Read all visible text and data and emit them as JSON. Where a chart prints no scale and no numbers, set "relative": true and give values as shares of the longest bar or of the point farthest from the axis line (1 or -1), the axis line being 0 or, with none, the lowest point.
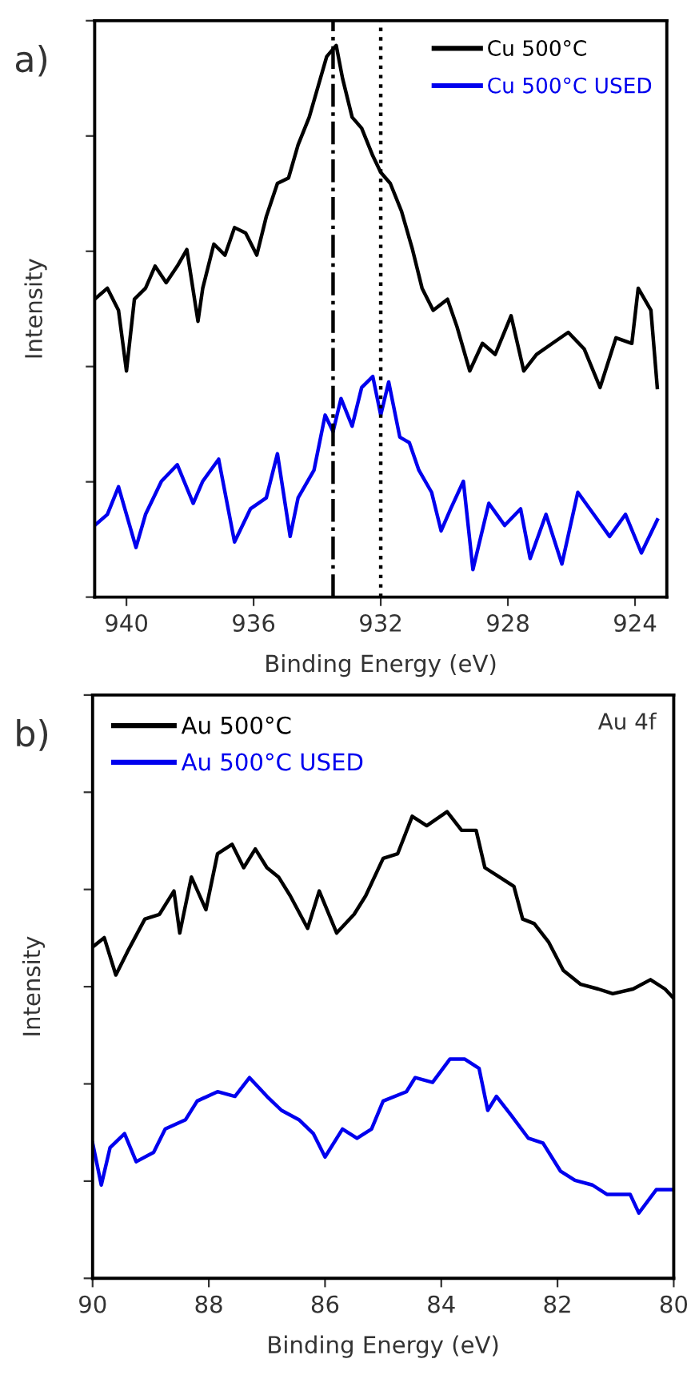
{
  "chart_data": [
    {
      "type": "line",
      "title": "a)",
      "xlabel": "Binding Energy (eV)",
      "ylabel": "Intensity",
      "relative": true,
      "xlim": [
        941,
        923
      ],
      "xticks": [
        940,
        936,
        932,
        928,
        924
      ],
      "legend": "top right",
      "grid": false,
      "ref_lines": [
        {
          "axis": "x",
          "value": 933.5,
          "color": "#000000",
          "line_style": "dashdot"
        },
        {
          "axis": "x",
          "value": 932.0,
          "color": "#000000",
          "line_style": "dotted"
        }
      ],
      "series": [
        {
          "name": "Cu 500°C",
          "color": "#000000",
          "x": [
            941.0,
            940.6,
            940.25,
            940.0,
            939.75,
            939.4,
            939.1,
            938.75,
            938.4,
            938.1,
            937.75,
            937.6,
            937.25,
            936.9,
            936.6,
            936.25,
            935.9,
            935.6,
            935.25,
            934.9,
            934.6,
            934.25,
            933.9,
            933.7,
            933.4,
            933.2,
            932.9,
            932.6,
            932.25,
            932.0,
            931.7,
            931.35,
            931.0,
            930.7,
            930.35,
            929.9,
            929.6,
            929.2,
            928.8,
            928.4,
            927.9,
            927.5,
            927.1,
            926.6,
            926.1,
            925.6,
            925.1,
            924.6,
            924.1,
            923.9,
            923.5,
            923.3
          ],
          "values": [
            0.54,
            0.56,
            0.52,
            0.41,
            0.54,
            0.56,
            0.6,
            0.57,
            0.6,
            0.63,
            0.5,
            0.56,
            0.64,
            0.62,
            0.67,
            0.66,
            0.62,
            0.69,
            0.75,
            0.76,
            0.82,
            0.87,
            0.94,
            0.98,
            1.0,
            0.94,
            0.87,
            0.85,
            0.8,
            0.77,
            0.75,
            0.7,
            0.63,
            0.56,
            0.52,
            0.54,
            0.49,
            0.41,
            0.46,
            0.44,
            0.51,
            0.41,
            0.44,
            0.46,
            0.48,
            0.45,
            0.38,
            0.47,
            0.46,
            0.56,
            0.52,
            0.38
          ]
        },
        {
          "name": "Cu 500°C USED",
          "color": "#0000ee",
          "x": [
            941.0,
            940.6,
            940.25,
            939.7,
            939.4,
            938.9,
            938.4,
            937.9,
            937.6,
            937.1,
            936.6,
            936.1,
            935.6,
            935.25,
            934.85,
            934.6,
            934.1,
            933.75,
            933.5,
            933.25,
            932.9,
            932.6,
            932.25,
            932.0,
            931.75,
            931.4,
            931.1,
            930.8,
            930.4,
            930.1,
            929.8,
            929.4,
            929.1,
            928.6,
            928.1,
            927.6,
            927.3,
            926.8,
            926.3,
            925.8,
            925.3,
            924.8,
            924.3,
            923.8,
            923.3
          ],
          "values": [
            0.13,
            0.15,
            0.2,
            0.09,
            0.15,
            0.21,
            0.24,
            0.17,
            0.21,
            0.25,
            0.1,
            0.16,
            0.18,
            0.26,
            0.11,
            0.18,
            0.23,
            0.33,
            0.3,
            0.36,
            0.31,
            0.38,
            0.4,
            0.33,
            0.39,
            0.29,
            0.28,
            0.23,
            0.19,
            0.12,
            0.16,
            0.21,
            0.05,
            0.17,
            0.13,
            0.16,
            0.07,
            0.15,
            0.06,
            0.19,
            0.15,
            0.11,
            0.15,
            0.08,
            0.14
          ]
        }
      ]
    },
    {
      "type": "line",
      "title": "b)",
      "xlabel": "Binding Energy (eV)",
      "ylabel": "Intensity",
      "relative": true,
      "xlim": [
        90,
        80
      ],
      "xticks": [
        90,
        88,
        86,
        84,
        82,
        80
      ],
      "legend": "top left",
      "grid": false,
      "annotations": [
        "Au 4f"
      ],
      "series": [
        {
          "name": "Au 500°C",
          "color": "#000000",
          "x": [
            90.0,
            89.8,
            89.6,
            89.4,
            89.1,
            88.85,
            88.6,
            88.5,
            88.3,
            88.05,
            87.85,
            87.6,
            87.4,
            87.2,
            87.0,
            86.8,
            86.6,
            86.3,
            86.1,
            85.8,
            85.5,
            85.3,
            85.0,
            84.75,
            84.5,
            84.25,
            83.9,
            83.65,
            83.4,
            83.25,
            83.0,
            82.75,
            82.6,
            82.4,
            82.15,
            81.9,
            81.6,
            81.3,
            81.05,
            80.7,
            80.4,
            80.15,
            80.0
          ],
          "values": [
            0.71,
            0.73,
            0.65,
            0.7,
            0.77,
            0.78,
            0.83,
            0.74,
            0.86,
            0.79,
            0.91,
            0.93,
            0.88,
            0.92,
            0.88,
            0.86,
            0.82,
            0.75,
            0.83,
            0.74,
            0.78,
            0.82,
            0.9,
            0.91,
            0.99,
            0.97,
            1.0,
            0.96,
            0.96,
            0.88,
            0.86,
            0.84,
            0.77,
            0.76,
            0.72,
            0.66,
            0.63,
            0.62,
            0.61,
            0.62,
            0.64,
            0.62,
            0.6
          ]
        },
        {
          "name": "Au 500°C USED",
          "color": "#0000ee",
          "x": [
            90.0,
            89.85,
            89.7,
            89.45,
            89.25,
            88.95,
            88.75,
            88.4,
            88.2,
            87.85,
            87.55,
            87.3,
            87.0,
            86.75,
            86.45,
            86.2,
            86.0,
            85.7,
            85.45,
            85.2,
            85.0,
            84.6,
            84.45,
            84.15,
            83.85,
            83.6,
            83.35,
            83.2,
            83.05,
            82.8,
            82.5,
            82.25,
            81.95,
            81.7,
            81.4,
            81.15,
            80.75,
            80.6,
            80.3,
            80.0
          ],
          "values": [
            0.29,
            0.2,
            0.28,
            0.31,
            0.25,
            0.27,
            0.32,
            0.34,
            0.38,
            0.4,
            0.39,
            0.43,
            0.39,
            0.36,
            0.34,
            0.31,
            0.26,
            0.32,
            0.3,
            0.32,
            0.38,
            0.4,
            0.43,
            0.42,
            0.47,
            0.47,
            0.45,
            0.36,
            0.39,
            0.35,
            0.3,
            0.29,
            0.23,
            0.21,
            0.2,
            0.18,
            0.18,
            0.14,
            0.19,
            0.19
          ]
        }
      ]
    }
  ]
}
